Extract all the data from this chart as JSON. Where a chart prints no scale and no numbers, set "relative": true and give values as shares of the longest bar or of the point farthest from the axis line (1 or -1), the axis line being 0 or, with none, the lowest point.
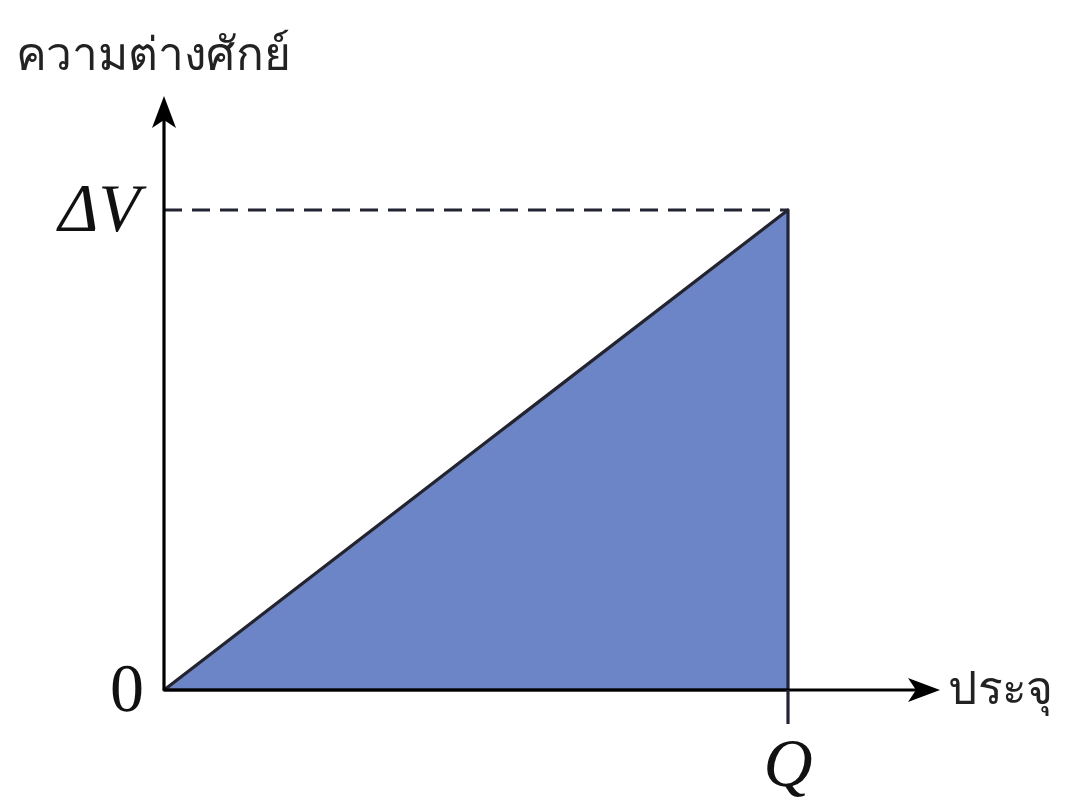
{
  "chart_data": {
    "type": "area",
    "relative": true,
    "ylabel": "ความต่างศักย์",
    "xlabel": "ประจุ",
    "categories": [
      null,
      null
    ],
    "values": [
      0,
      1
    ],
    "color": "#6b85c6",
    "ref_lines": [
      {
        "axis": "y",
        "value": 1,
        "label": "ΔV",
        "line_style": "dashed"
      }
    ],
    "annotations": [
      "0",
      {
        "text": "Q"
      }
    ]
  }
}
